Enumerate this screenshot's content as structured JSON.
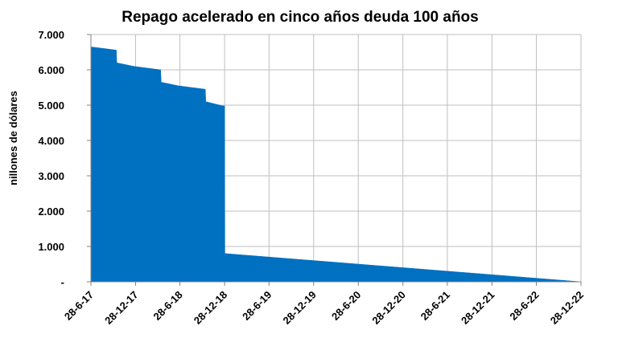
{
  "chart_data": {
    "type": "area",
    "title": "Repago acelerado en cinco años deuda 100 años",
    "xlabel": "",
    "ylabel": "nillones de dólares",
    "ylim": [
      0,
      7000
    ],
    "xlim": [
      "2017-06-28",
      "2022-12-28"
    ],
    "y_ticks": [
      0,
      1000,
      2000,
      3000,
      4000,
      5000,
      6000,
      7000
    ],
    "y_tick_labels": [
      "-",
      "1.000",
      "2.000",
      "3.000",
      "4.000",
      "5.000",
      "6.000",
      "7.000"
    ],
    "x_ticks": [
      "2017-06-28",
      "2017-12-28",
      "2018-06-28",
      "2018-12-28",
      "2019-06-28",
      "2019-12-28",
      "2020-06-28",
      "2020-12-28",
      "2021-06-28",
      "2021-12-28",
      "2022-06-28",
      "2022-12-28"
    ],
    "x_tick_labels": [
      "28-6-17",
      "28-12-17",
      "28-6-18",
      "28-12-18",
      "28-6-19",
      "28-12-19",
      "28-6-20",
      "28-12-20",
      "28-6-21",
      "28-12-21",
      "28-6-22",
      "28-12-22"
    ],
    "grid": true,
    "color": "#0070C0",
    "series": [
      {
        "points": [
          [
            "2017-06-28",
            0
          ],
          [
            "2017-06-28",
            6650
          ],
          [
            "2017-10-10",
            6560
          ],
          [
            "2017-10-12",
            6200
          ],
          [
            "2017-12-20",
            6100
          ],
          [
            "2018-04-10",
            6000
          ],
          [
            "2018-04-12",
            5650
          ],
          [
            "2018-06-20",
            5550
          ],
          [
            "2018-10-10",
            5450
          ],
          [
            "2018-10-12",
            5100
          ],
          [
            "2018-12-20",
            4980
          ],
          [
            "2018-12-28",
            4980
          ],
          [
            "2018-12-29",
            800
          ],
          [
            "2022-12-28",
            0
          ]
        ]
      }
    ]
  }
}
